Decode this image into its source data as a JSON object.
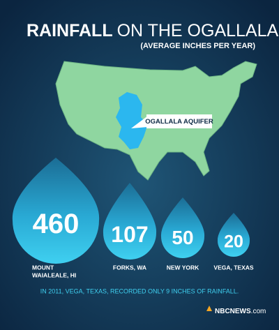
{
  "header": {
    "title_bold": "RAINFALL",
    "title_rest": "ON THE OGALLALA",
    "subtitle": "(AVERAGE INCHES PER YEAR)"
  },
  "map": {
    "label": "OGALLALA AQUIFER"
  },
  "drops": [
    {
      "value": "460",
      "label": [
        "MOUNT",
        "WAIALEALE, HI"
      ]
    },
    {
      "value": "107",
      "label": [
        "FORKS, WA"
      ]
    },
    {
      "value": "50",
      "label": [
        "NEW YORK"
      ]
    },
    {
      "value": "20",
      "label": [
        "VEGA, TEXAS"
      ]
    }
  ],
  "footnote": "IN 2011, VEGA, TEXAS, RECORDED ONLY 9 INCHES OF RAINFALL.",
  "logo": {
    "brand": "NBCNEWS",
    "suffix": ".com"
  }
}
